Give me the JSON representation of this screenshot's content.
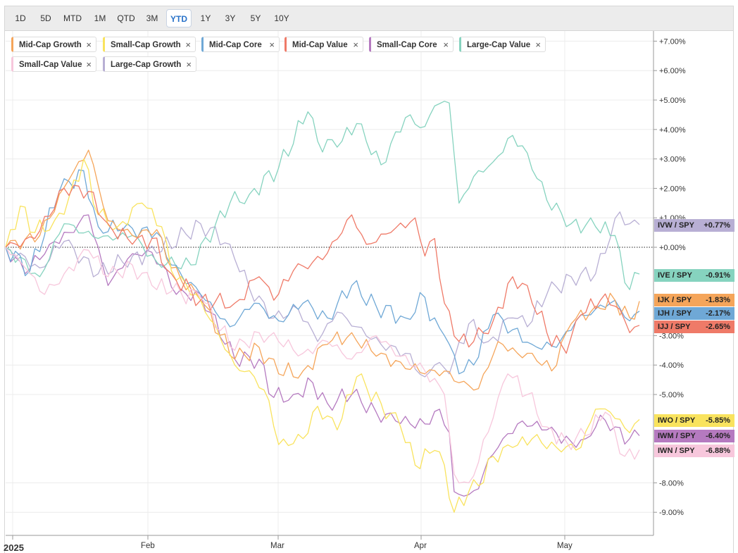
{
  "toolbar": {
    "timeframes": [
      "1D",
      "5D",
      "MTD",
      "1M",
      "QTD",
      "3M",
      "YTD",
      "1Y",
      "3Y",
      "5Y",
      "10Y"
    ],
    "active": "YTD"
  },
  "legend_chips": [
    {
      "label": "Mid-Cap Growth",
      "color": "#f5a55a"
    },
    {
      "label": "Small-Cap Growth",
      "color": "#f9e35e"
    },
    {
      "label": "Mid-Cap Core",
      "color": "#6fa8d6"
    },
    {
      "label": "Mid-Cap Value",
      "color": "#ef7a68"
    },
    {
      "label": "Small-Cap Core",
      "color": "#b57ac0"
    },
    {
      "label": "Large-Cap Value",
      "color": "#86d3bf"
    },
    {
      "label": "Small-Cap Value",
      "color": "#f7c7dc"
    },
    {
      "label": "Large-Cap Growth",
      "color": "#b8afd4"
    }
  ],
  "chip_close": "×",
  "chart_data": {
    "type": "line",
    "x_tick_labels": [
      "2025",
      "Feb",
      "Mar",
      "Apr",
      "May"
    ],
    "y_tick_labels": [
      "+7.00%",
      "+6.00%",
      "+5.00%",
      "+4.00%",
      "+3.00%",
      "+2.00%",
      "+1.00%",
      "+0.00%",
      "-3.00%",
      "-4.00%",
      "-5.00%",
      "-8.00%",
      "-9.00%"
    ],
    "ylim": [
      -9.6,
      7.4
    ],
    "y_axis_side": "right",
    "zero_line": "dotted",
    "legend_position": "top-left",
    "series": [
      {
        "name": "Large-Cap Value",
        "ticker": "IVE / SPY",
        "last_label": "-0.91%",
        "color": "#86d3bf",
        "anchors": [
          [
            0,
            0
          ],
          [
            7,
            -1
          ],
          [
            12,
            0.8
          ],
          [
            19,
            0.3
          ],
          [
            26,
            0.4
          ],
          [
            31,
            -0.5
          ],
          [
            38,
            -0.6
          ],
          [
            46,
            1.5
          ],
          [
            50,
            1.8
          ],
          [
            56,
            2.7
          ],
          [
            62,
            4.6
          ],
          [
            64,
            3.6
          ],
          [
            68,
            3.4
          ],
          [
            72,
            4.2
          ],
          [
            77,
            2.8
          ],
          [
            82,
            4.4
          ],
          [
            86,
            4.1
          ],
          [
            88,
            4.8
          ],
          [
            91,
            4.9
          ],
          [
            93,
            1.5
          ],
          [
            96,
            2.4
          ],
          [
            100,
            2.9
          ],
          [
            104,
            3.8
          ],
          [
            107,
            3.2
          ],
          [
            111,
            1.6
          ],
          [
            116,
            0.8
          ],
          [
            121,
            0.7
          ],
          [
            125,
            0.4
          ],
          [
            127,
            -1.2
          ],
          [
            130,
            -0.91
          ]
        ]
      },
      {
        "name": "Large-Cap Growth",
        "ticker": "IVW / SPY",
        "last_label": "+0.77%",
        "color": "#b8afd4",
        "anchors": [
          [
            0,
            0
          ],
          [
            7,
            -0.7
          ],
          [
            12,
            0.2
          ],
          [
            19,
            -0.9
          ],
          [
            26,
            -0.3
          ],
          [
            31,
            -0.2
          ],
          [
            40,
            0.8
          ],
          [
            46,
            0.1
          ],
          [
            50,
            -1.4
          ],
          [
            55,
            -2.4
          ],
          [
            60,
            -2.1
          ],
          [
            64,
            -3.2
          ],
          [
            68,
            -2.2
          ],
          [
            72,
            -2.7
          ],
          [
            77,
            -3.3
          ],
          [
            82,
            -3.6
          ],
          [
            86,
            -4.4
          ],
          [
            88,
            -4.0
          ],
          [
            91,
            -4.3
          ],
          [
            95,
            -2.6
          ],
          [
            99,
            -3.2
          ],
          [
            104,
            -2.4
          ],
          [
            107,
            -2.7
          ],
          [
            111,
            -1.6
          ],
          [
            116,
            -1.0
          ],
          [
            121,
            -0.9
          ],
          [
            124,
            0.3
          ],
          [
            126,
            1.2
          ],
          [
            128,
            0.8
          ],
          [
            130,
            0.77
          ]
        ]
      },
      {
        "name": "Mid-Cap Core",
        "ticker": "IJH / SPY",
        "last_label": "-2.17%",
        "color": "#6fa8d6",
        "anchors": [
          [
            0,
            0
          ],
          [
            5,
            -0.8
          ],
          [
            11,
            1.9
          ],
          [
            16,
            2.6
          ],
          [
            19,
            0.7
          ],
          [
            24,
            0.6
          ],
          [
            31,
            0.5
          ],
          [
            34,
            -0.6
          ],
          [
            40,
            -1.6
          ],
          [
            46,
            -2.7
          ],
          [
            51,
            -1.9
          ],
          [
            56,
            -2.5
          ],
          [
            61,
            -1.9
          ],
          [
            66,
            -2.4
          ],
          [
            71,
            -1.3
          ],
          [
            76,
            -2.0
          ],
          [
            82,
            -2.4
          ],
          [
            86,
            -1.7
          ],
          [
            87,
            -2.5
          ],
          [
            90,
            -3.0
          ],
          [
            93,
            -4.3
          ],
          [
            96,
            -4.0
          ],
          [
            100,
            -2.3
          ],
          [
            104,
            -2.8
          ],
          [
            108,
            -3.3
          ],
          [
            113,
            -3.4
          ],
          [
            117,
            -2.5
          ],
          [
            121,
            -2.1
          ],
          [
            125,
            -1.8
          ],
          [
            128,
            -2.5
          ],
          [
            130,
            -2.17
          ]
        ]
      },
      {
        "name": "Mid-Cap Growth",
        "ticker": "IJK / SPY",
        "last_label": "-1.83%",
        "color": "#f5a55a",
        "anchors": [
          [
            0,
            0
          ],
          [
            7,
            0.4
          ],
          [
            13,
            2.3
          ],
          [
            17,
            3.3
          ],
          [
            21,
            0.9
          ],
          [
            26,
            0.4
          ],
          [
            31,
            0.6
          ],
          [
            34,
            -0.7
          ],
          [
            40,
            -1.8
          ],
          [
            47,
            -3.8
          ],
          [
            52,
            -3.4
          ],
          [
            56,
            -4.3
          ],
          [
            61,
            -4.2
          ],
          [
            66,
            -3.3
          ],
          [
            71,
            -2.9
          ],
          [
            76,
            -3.7
          ],
          [
            81,
            -3.9
          ],
          [
            86,
            -4.3
          ],
          [
            90,
            -4.2
          ],
          [
            93,
            -4.6
          ],
          [
            97,
            -4.8
          ],
          [
            101,
            -3.2
          ],
          [
            105,
            -3.6
          ],
          [
            108,
            -3.6
          ],
          [
            112,
            -4.2
          ],
          [
            116,
            -2.6
          ],
          [
            121,
            -2.0
          ],
          [
            125,
            -1.8
          ],
          [
            128,
            -2.4
          ],
          [
            130,
            -1.83
          ]
        ]
      },
      {
        "name": "Mid-Cap Value",
        "ticker": "IJJ / SPY",
        "last_label": "-2.65%",
        "color": "#ef7a68",
        "anchors": [
          [
            0,
            0
          ],
          [
            6,
            0.3
          ],
          [
            12,
            2.0
          ],
          [
            17,
            1.9
          ],
          [
            21,
            0.8
          ],
          [
            26,
            0.1
          ],
          [
            30,
            0.3
          ],
          [
            34,
            -0.9
          ],
          [
            40,
            -1.8
          ],
          [
            47,
            -1.9
          ],
          [
            52,
            -1.0
          ],
          [
            55,
            -1.8
          ],
          [
            59,
            -0.8
          ],
          [
            63,
            -0.5
          ],
          [
            66,
            -0.2
          ],
          [
            71,
            1.1
          ],
          [
            74,
            0.1
          ],
          [
            79,
            0.5
          ],
          [
            84,
            1.0
          ],
          [
            86,
            -0.3
          ],
          [
            88,
            0.3
          ],
          [
            90,
            -1.9
          ],
          [
            93,
            -3.2
          ],
          [
            96,
            -3.2
          ],
          [
            100,
            -2.5
          ],
          [
            104,
            -1.0
          ],
          [
            107,
            -1.3
          ],
          [
            111,
            -2.9
          ],
          [
            115,
            -3.6
          ],
          [
            118,
            -2.3
          ],
          [
            122,
            -1.8
          ],
          [
            125,
            -2.0
          ],
          [
            128,
            -2.9
          ],
          [
            130,
            -2.65
          ]
        ]
      },
      {
        "name": "Small-Cap Growth",
        "ticker": "IWO / SPY",
        "last_label": "-5.85%",
        "color": "#f9e35e",
        "anchors": [
          [
            0,
            0
          ],
          [
            3,
            1.4
          ],
          [
            6,
            0.5
          ],
          [
            10,
            0.9
          ],
          [
            13,
            1.7
          ],
          [
            16,
            3.0
          ],
          [
            19,
            1.1
          ],
          [
            23,
            0.7
          ],
          [
            28,
            1.5
          ],
          [
            32,
            0.7
          ],
          [
            34,
            -0.8
          ],
          [
            40,
            -1.8
          ],
          [
            47,
            -4.0
          ],
          [
            51,
            -4.4
          ],
          [
            54,
            -5.2
          ],
          [
            56,
            -6.7
          ],
          [
            61,
            -6.5
          ],
          [
            64,
            -5.4
          ],
          [
            68,
            -6.2
          ],
          [
            72,
            -4.4
          ],
          [
            77,
            -5.3
          ],
          [
            81,
            -6.1
          ],
          [
            84,
            -7.4
          ],
          [
            88,
            -6.9
          ],
          [
            90,
            -7.4
          ],
          [
            92,
            -9.0
          ],
          [
            95,
            -8.3
          ],
          [
            97,
            -8.1
          ],
          [
            100,
            -7.1
          ],
          [
            104,
            -6.8
          ],
          [
            108,
            -6.5
          ],
          [
            113,
            -6.8
          ],
          [
            118,
            -6.8
          ],
          [
            121,
            -5.5
          ],
          [
            124,
            -5.6
          ],
          [
            128,
            -6.3
          ],
          [
            130,
            -5.85
          ]
        ]
      },
      {
        "name": "Small-Cap Core",
        "ticker": "IWM / SPY",
        "last_label": "-6.40%",
        "color": "#b57ac0",
        "anchors": [
          [
            0,
            0
          ],
          [
            4,
            -0.9
          ],
          [
            9,
            0.1
          ],
          [
            13,
            0.5
          ],
          [
            17,
            1.1
          ],
          [
            21,
            -1.3
          ],
          [
            25,
            -0.4
          ],
          [
            29,
            -0.1
          ],
          [
            32,
            -0.6
          ],
          [
            35,
            -1.6
          ],
          [
            40,
            -1.6
          ],
          [
            47,
            -3.8
          ],
          [
            52,
            -3.8
          ],
          [
            55,
            -5.1
          ],
          [
            59,
            -5.0
          ],
          [
            63,
            -4.6
          ],
          [
            66,
            -5.3
          ],
          [
            71,
            -5.0
          ],
          [
            76,
            -5.6
          ],
          [
            80,
            -5.9
          ],
          [
            83,
            -6.0
          ],
          [
            86,
            -6.0
          ],
          [
            89,
            -5.5
          ],
          [
            91,
            -6.3
          ],
          [
            92,
            -8.3
          ],
          [
            95,
            -8.4
          ],
          [
            97,
            -8.2
          ],
          [
            99,
            -7.2
          ],
          [
            102,
            -6.5
          ],
          [
            106,
            -5.9
          ],
          [
            111,
            -6.2
          ],
          [
            116,
            -6.6
          ],
          [
            119,
            -6.5
          ],
          [
            122,
            -5.7
          ],
          [
            125,
            -6.1
          ],
          [
            128,
            -6.5
          ],
          [
            130,
            -6.4
          ]
        ]
      },
      {
        "name": "Small-Cap Value",
        "ticker": "IWN / SPY",
        "last_label": "-6.88%",
        "color": "#f7c7dc",
        "anchors": [
          [
            0,
            0
          ],
          [
            4,
            -0.7
          ],
          [
            8,
            -1.6
          ],
          [
            12,
            -0.9
          ],
          [
            17,
            -0.1
          ],
          [
            21,
            -1.0
          ],
          [
            26,
            -0.6
          ],
          [
            30,
            -1.3
          ],
          [
            34,
            -1.5
          ],
          [
            40,
            -1.7
          ],
          [
            47,
            -3.5
          ],
          [
            52,
            -2.9
          ],
          [
            56,
            -3.2
          ],
          [
            61,
            -3.6
          ],
          [
            66,
            -3.2
          ],
          [
            71,
            -3.8
          ],
          [
            76,
            -3.0
          ],
          [
            81,
            -3.7
          ],
          [
            86,
            -4.2
          ],
          [
            90,
            -5.0
          ],
          [
            92,
            -7.7
          ],
          [
            95,
            -8.0
          ],
          [
            97,
            -7.3
          ],
          [
            100,
            -5.8
          ],
          [
            103,
            -4.3
          ],
          [
            107,
            -5.0
          ],
          [
            111,
            -6.1
          ],
          [
            115,
            -6.6
          ],
          [
            119,
            -6.4
          ],
          [
            123,
            -5.6
          ],
          [
            127,
            -7.1
          ],
          [
            130,
            -6.88
          ]
        ]
      }
    ],
    "right_tags_order": [
      "IVW / SPY",
      "IVE / SPY",
      "IJK / SPY",
      "IJH / SPY",
      "IJJ / SPY",
      "IWO / SPY",
      "IWM / SPY",
      "IWN / SPY"
    ]
  }
}
